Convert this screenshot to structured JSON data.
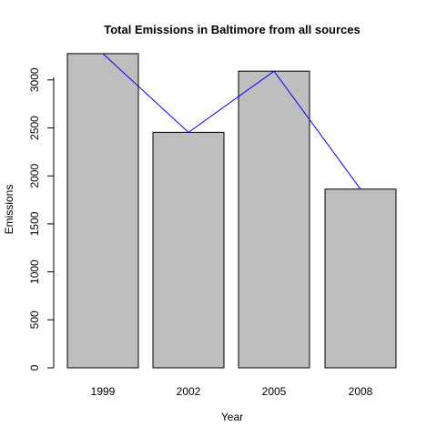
{
  "chart_data": {
    "type": "bar",
    "title": "Total Emissions in Baltimore from all sources",
    "xlabel": "Year",
    "ylabel": "Emissions",
    "categories": [
      "1999",
      "2002",
      "2005",
      "2008"
    ],
    "values": [
      3274.18,
      2453.92,
      3091.35,
      1862.28
    ],
    "ylim": [
      0,
      3300
    ],
    "y_ticks": [
      0,
      500,
      1000,
      1500,
      2000,
      2500,
      3000
    ],
    "y_tick_labels": [
      "0",
      "500",
      "1000",
      "1500",
      "2000",
      "2500",
      "3000"
    ],
    "grid": false,
    "legend": "none",
    "overlay_line": {
      "type": "line",
      "values": [
        3274.18,
        2453.92,
        3091.35,
        1862.28
      ]
    },
    "colors": {
      "bar_fill": "#bebebe",
      "bar_stroke": "#000000",
      "line": "#0000ff",
      "axis": "#000000",
      "background": "#ffffff"
    }
  }
}
